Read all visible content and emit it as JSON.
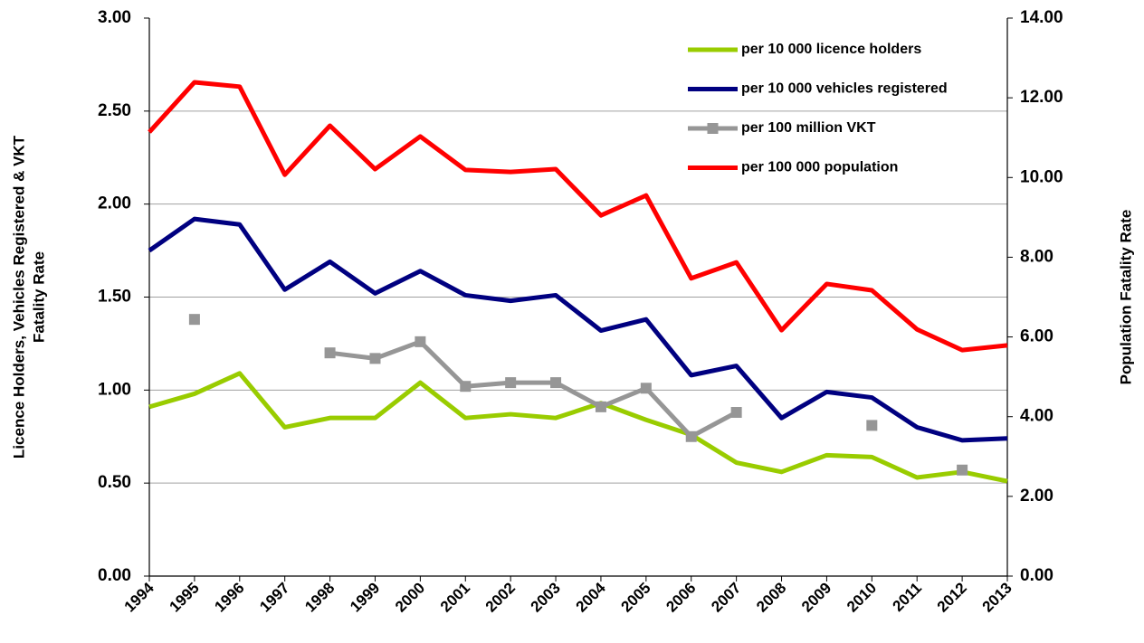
{
  "chart_data": {
    "type": "line",
    "ylabel": [
      "Licence Holders, Vehicles Registered & VKT",
      "Fatality Rate"
    ],
    "y2label": "Population Fatality Rate",
    "categories": [
      "1994",
      "1995",
      "1996",
      "1997",
      "1998",
      "1999",
      "2000",
      "2001",
      "2002",
      "2003",
      "2004",
      "2005",
      "2006",
      "2007",
      "2008",
      "2009",
      "2010",
      "2011",
      "2012",
      "2013"
    ],
    "ylim": [
      0,
      3
    ],
    "yticks": [
      {
        "value": 0,
        "label": "0.00"
      },
      {
        "value": 0.5,
        "label": "0.50"
      },
      {
        "value": 1,
        "label": "1.00"
      },
      {
        "value": 1.5,
        "label": "1.50"
      },
      {
        "value": 2,
        "label": "2.00"
      },
      {
        "value": 2.5,
        "label": "2.50"
      },
      {
        "value": 3,
        "label": "3.00"
      }
    ],
    "y2lim": [
      0,
      14
    ],
    "y2ticks": [
      {
        "value": 0,
        "label": "0.00"
      },
      {
        "value": 2,
        "label": "2.00"
      },
      {
        "value": 4,
        "label": "4.00"
      },
      {
        "value": 6,
        "label": "6.00"
      },
      {
        "value": 8,
        "label": "8.00"
      },
      {
        "value": 10,
        "label": "10.00"
      },
      {
        "value": 12,
        "label": "12.00"
      },
      {
        "value": 14,
        "label": "14.00"
      }
    ],
    "grid": true,
    "legend": "top-right",
    "series": [
      {
        "name": "per 10 000 licence holders",
        "color": "#99cc00",
        "marker": "none",
        "values": [
          0.91,
          0.98,
          1.09,
          0.8,
          0.85,
          0.85,
          1.04,
          0.85,
          0.87,
          0.85,
          0.93,
          0.84,
          0.76,
          0.61,
          0.56,
          0.65,
          0.64,
          0.53,
          0.56,
          0.51
        ]
      },
      {
        "name": "per 10 000 vehicles registered",
        "color": "#000080",
        "marker": "none",
        "values": [
          1.75,
          1.92,
          1.89,
          1.54,
          1.69,
          1.52,
          1.64,
          1.51,
          1.48,
          1.51,
          1.32,
          1.38,
          1.08,
          1.13,
          0.85,
          0.99,
          0.96,
          0.8,
          0.73,
          0.74
        ]
      },
      {
        "name": "per 100 million VKT",
        "color": "#969696",
        "marker": "square",
        "values": [
          null,
          1.38,
          null,
          null,
          1.2,
          1.17,
          1.26,
          1.02,
          1.04,
          1.04,
          0.91,
          1.01,
          0.75,
          0.88,
          null,
          null,
          0.81,
          null,
          0.57,
          null
        ]
      },
      {
        "name": "per 100 000 population",
        "color": "#ff0000",
        "marker": "none",
        "axis": "y2",
        "values": [
          11.14,
          12.39,
          12.28,
          10.07,
          11.3,
          10.21,
          11.03,
          10.19,
          10.14,
          10.21,
          9.05,
          9.55,
          7.47,
          7.87,
          6.17,
          7.33,
          7.17,
          6.19,
          5.67,
          5.79
        ]
      }
    ]
  }
}
